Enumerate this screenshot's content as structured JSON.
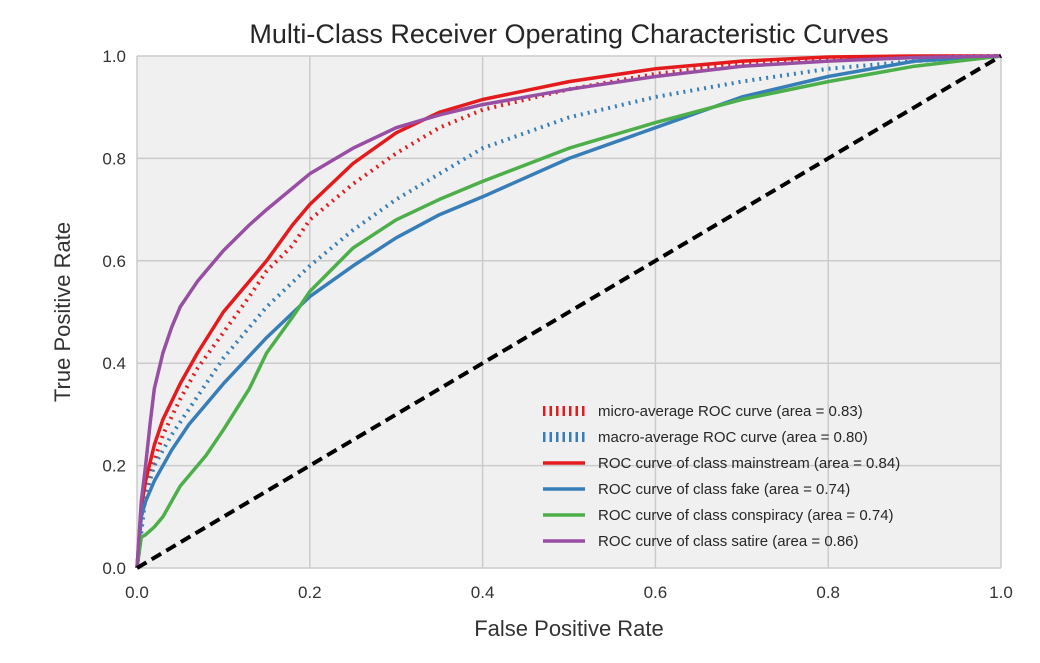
{
  "chart_data": {
    "type": "line",
    "title": "Multi-Class Receiver Operating Characteristic Curves",
    "xlabel": "False Positive Rate",
    "ylabel": "True Positive Rate",
    "xlim": [
      0.0,
      1.0
    ],
    "ylim": [
      0.0,
      1.0
    ],
    "x_ticks": [
      "0.0",
      "0.2",
      "0.4",
      "0.6",
      "0.8",
      "1.0"
    ],
    "y_ticks": [
      "0.0",
      "0.2",
      "0.4",
      "0.6",
      "0.8",
      "1.0"
    ],
    "grid": true,
    "legend_position": "lower-right",
    "series": [
      {
        "name": "micro-average ROC curve (area = 0.83)",
        "color": "#e41a1c",
        "style": "dotted",
        "x": [
          0,
          0.01,
          0.02,
          0.03,
          0.05,
          0.07,
          0.1,
          0.13,
          0.15,
          0.18,
          0.2,
          0.25,
          0.3,
          0.35,
          0.4,
          0.5,
          0.6,
          0.7,
          0.8,
          0.9,
          1.0
        ],
        "y": [
          0,
          0.15,
          0.21,
          0.26,
          0.33,
          0.39,
          0.46,
          0.53,
          0.58,
          0.63,
          0.68,
          0.75,
          0.81,
          0.86,
          0.895,
          0.935,
          0.965,
          0.985,
          0.995,
          0.999,
          1.0
        ]
      },
      {
        "name": "macro-average ROC curve (area = 0.80)",
        "color": "#377eb8",
        "style": "dotted",
        "x": [
          0,
          0.01,
          0.02,
          0.04,
          0.06,
          0.08,
          0.1,
          0.15,
          0.2,
          0.25,
          0.3,
          0.35,
          0.4,
          0.5,
          0.6,
          0.7,
          0.8,
          0.9,
          1.0
        ],
        "y": [
          0,
          0.14,
          0.2,
          0.26,
          0.31,
          0.36,
          0.41,
          0.51,
          0.59,
          0.66,
          0.72,
          0.77,
          0.82,
          0.88,
          0.92,
          0.95,
          0.975,
          0.99,
          1.0
        ]
      },
      {
        "name": "ROC curve of class mainstream (area = 0.84)",
        "color": "#e41a1c",
        "style": "solid",
        "x": [
          0,
          0.005,
          0.01,
          0.02,
          0.03,
          0.05,
          0.07,
          0.1,
          0.12,
          0.15,
          0.18,
          0.2,
          0.25,
          0.3,
          0.35,
          0.4,
          0.5,
          0.6,
          0.7,
          0.8,
          0.9,
          1.0
        ],
        "y": [
          0,
          0.12,
          0.17,
          0.24,
          0.29,
          0.36,
          0.42,
          0.5,
          0.54,
          0.6,
          0.67,
          0.71,
          0.79,
          0.85,
          0.89,
          0.915,
          0.95,
          0.975,
          0.99,
          0.998,
          1.0,
          1.0
        ]
      },
      {
        "name": "ROC curve of class fake (area = 0.74)",
        "color": "#377eb8",
        "style": "solid",
        "x": [
          0,
          0.005,
          0.01,
          0.02,
          0.04,
          0.06,
          0.08,
          0.1,
          0.15,
          0.2,
          0.25,
          0.3,
          0.35,
          0.4,
          0.5,
          0.6,
          0.7,
          0.8,
          0.9,
          1.0
        ],
        "y": [
          0,
          0.1,
          0.13,
          0.17,
          0.23,
          0.28,
          0.32,
          0.36,
          0.45,
          0.53,
          0.59,
          0.645,
          0.69,
          0.725,
          0.8,
          0.86,
          0.92,
          0.96,
          0.99,
          1.0
        ]
      },
      {
        "name": "ROC curve of class conspiracy (area = 0.74)",
        "color": "#4daf4a",
        "style": "solid",
        "x": [
          0,
          0.005,
          0.01,
          0.02,
          0.03,
          0.05,
          0.08,
          0.1,
          0.13,
          0.15,
          0.18,
          0.2,
          0.25,
          0.3,
          0.35,
          0.4,
          0.5,
          0.6,
          0.7,
          0.8,
          0.9,
          1.0
        ],
        "y": [
          0,
          0.06,
          0.065,
          0.08,
          0.1,
          0.16,
          0.22,
          0.27,
          0.35,
          0.42,
          0.49,
          0.54,
          0.625,
          0.68,
          0.72,
          0.755,
          0.82,
          0.87,
          0.915,
          0.95,
          0.98,
          1.0
        ]
      },
      {
        "name": "ROC curve of class satire (area = 0.86)",
        "color": "#984ea3",
        "style": "solid",
        "x": [
          0,
          0.005,
          0.01,
          0.015,
          0.02,
          0.03,
          0.04,
          0.05,
          0.07,
          0.1,
          0.13,
          0.15,
          0.2,
          0.25,
          0.3,
          0.35,
          0.4,
          0.5,
          0.6,
          0.7,
          0.8,
          0.9,
          1.0
        ],
        "y": [
          0,
          0.13,
          0.2,
          0.28,
          0.35,
          0.42,
          0.47,
          0.51,
          0.56,
          0.62,
          0.67,
          0.7,
          0.77,
          0.82,
          0.86,
          0.885,
          0.905,
          0.935,
          0.96,
          0.98,
          0.99,
          0.997,
          1.0
        ]
      },
      {
        "name": "",
        "color": "#000000",
        "style": "dashed",
        "x": [
          0,
          1
        ],
        "y": [
          0,
          1
        ]
      }
    ]
  }
}
